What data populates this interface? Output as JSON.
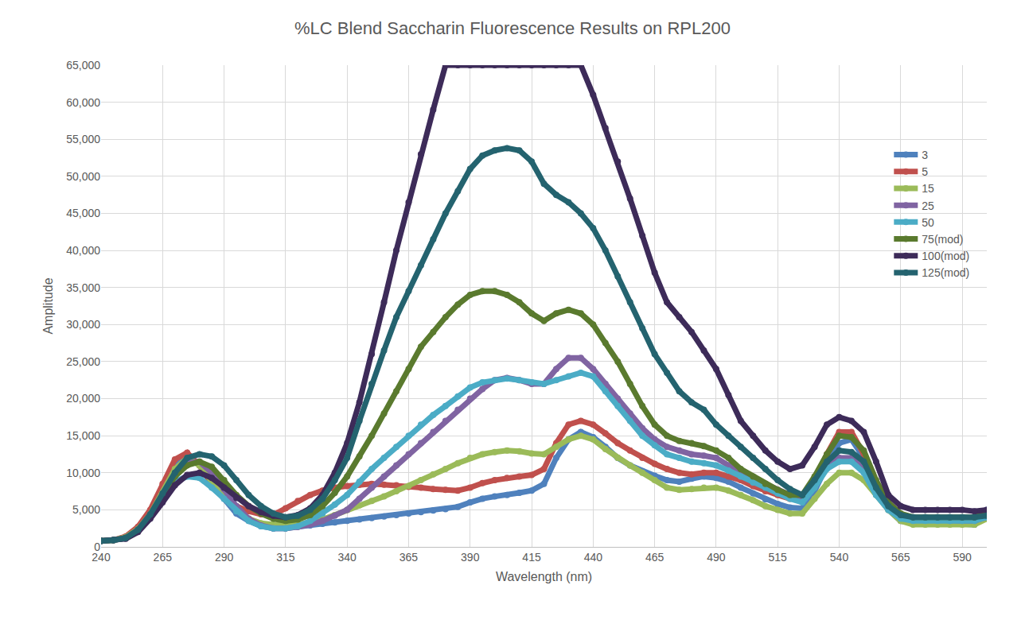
{
  "chart_data": {
    "type": "line",
    "title": "%LC Blend Saccharin Fluorescence Results on RPL200",
    "x_label": "Wavelength (nm)",
    "y_label": "Amplitude",
    "marker": "circle",
    "grid": true,
    "legend": "right",
    "xlim": [
      240,
      600
    ],
    "xticks": [
      240,
      265,
      290,
      315,
      340,
      365,
      390,
      415,
      440,
      465,
      490,
      515,
      540,
      565,
      590
    ],
    "ylim": [
      0,
      65000
    ],
    "yticks": [
      0,
      {
        "value": 5000,
        "label": "5,000"
      },
      {
        "value": 10000,
        "label": "10,000"
      },
      {
        "value": 15000,
        "label": "15,000"
      },
      {
        "value": 20000,
        "label": "20,000"
      },
      {
        "value": 25000,
        "label": "25,000"
      },
      {
        "value": 30000,
        "label": "30,000"
      },
      {
        "value": 35000,
        "label": "35,000"
      },
      {
        "value": 40000,
        "label": "40,000"
      },
      {
        "value": 45000,
        "label": "45,000"
      },
      {
        "value": 50000,
        "label": "50,000"
      },
      {
        "value": 55000,
        "label": "55,000"
      },
      {
        "value": 60000,
        "label": "60,000"
      },
      {
        "value": 65000,
        "label": "65,000"
      }
    ],
    "x": [
      240,
      245,
      250,
      255,
      260,
      265,
      270,
      275,
      280,
      285,
      290,
      295,
      300,
      305,
      310,
      315,
      320,
      325,
      330,
      335,
      340,
      345,
      350,
      355,
      360,
      365,
      370,
      375,
      380,
      385,
      390,
      395,
      400,
      405,
      410,
      415,
      420,
      425,
      430,
      435,
      440,
      445,
      450,
      455,
      460,
      465,
      470,
      475,
      480,
      485,
      490,
      495,
      500,
      505,
      510,
      515,
      520,
      525,
      530,
      535,
      540,
      545,
      550,
      555,
      560,
      565,
      570,
      575,
      580,
      585,
      590,
      595,
      600
    ],
    "series": [
      {
        "name": "3",
        "color": "#4F81BD",
        "values": [
          800,
          900,
          1300,
          2500,
          4500,
          7500,
          11000,
          12500,
          11000,
          8500,
          6500,
          4500,
          3500,
          2800,
          2500,
          2500,
          2700,
          2900,
          3100,
          3300,
          3500,
          3700,
          3900,
          4100,
          4300,
          4500,
          4700,
          4900,
          5100,
          5400,
          6000,
          6500,
          6800,
          7000,
          7300,
          7600,
          8500,
          12000,
          14500,
          15500,
          14800,
          13500,
          12000,
          11000,
          10200,
          9600,
          9000,
          8800,
          9200,
          9500,
          9300,
          8800,
          8000,
          7200,
          6400,
          5800,
          5300,
          5200,
          7500,
          11000,
          14000,
          14500,
          12000,
          8000,
          5000,
          3500,
          3200,
          3300,
          3300,
          3200,
          3100,
          3000,
          5000
        ]
      },
      {
        "name": "5",
        "color": "#C0504D",
        "values": [
          800,
          900,
          1400,
          2700,
          5000,
          8500,
          11800,
          12700,
          11000,
          8500,
          6800,
          5500,
          4800,
          4400,
          4300,
          5200,
          6200,
          7000,
          7600,
          8000,
          8200,
          8400,
          8500,
          8400,
          8300,
          8100,
          8000,
          7800,
          7700,
          7600,
          8000,
          8600,
          9000,
          9300,
          9500,
          9700,
          10500,
          14000,
          16500,
          17000,
          16500,
          15300,
          14000,
          13000,
          12000,
          11200,
          10500,
          10000,
          9800,
          10000,
          10000,
          9500,
          9000,
          8200,
          7500,
          7000,
          6500,
          6500,
          9000,
          12500,
          15500,
          15500,
          12500,
          8500,
          5500,
          3800,
          3500,
          3500,
          3500,
          3400,
          3300,
          3300,
          4500
        ]
      },
      {
        "name": "15",
        "color": "#9BBB59",
        "values": [
          800,
          900,
          1300,
          2400,
          4400,
          7300,
          10500,
          12000,
          11000,
          8800,
          6800,
          5000,
          3800,
          3200,
          3000,
          2900,
          3000,
          3300,
          3700,
          4300,
          5000,
          5600,
          6200,
          6800,
          7500,
          8200,
          9000,
          9800,
          10500,
          11300,
          12000,
          12500,
          12800,
          13000,
          12900,
          12600,
          12500,
          13500,
          14500,
          15000,
          14500,
          13200,
          12000,
          11000,
          10000,
          9000,
          8000,
          7700,
          7800,
          8000,
          8000,
          7600,
          7000,
          6300,
          5500,
          5000,
          4500,
          4500,
          6500,
          8500,
          10000,
          10000,
          9000,
          7000,
          5000,
          3500,
          3000,
          3000,
          3000,
          3000,
          3000,
          3000,
          3800
        ]
      },
      {
        "name": "25",
        "color": "#8064A2",
        "values": [
          800,
          900,
          1200,
          2300,
          4200,
          6800,
          9500,
          11300,
          11500,
          10000,
          7800,
          5500,
          3800,
          2900,
          2500,
          2500,
          2700,
          3000,
          3500,
          4200,
          5000,
          6500,
          8000,
          9500,
          11000,
          12500,
          14000,
          15500,
          17000,
          18500,
          20000,
          21300,
          22500,
          22800,
          22500,
          22000,
          22000,
          24000,
          25500,
          25500,
          24000,
          22000,
          20000,
          18000,
          16000,
          14500,
          13500,
          13000,
          12500,
          12300,
          12000,
          11000,
          10000,
          9200,
          8500,
          7700,
          7000,
          6500,
          8500,
          11000,
          12000,
          12000,
          10500,
          7500,
          5500,
          4300,
          3800,
          3700,
          3600,
          3500,
          3500,
          3500,
          4000
        ]
      },
      {
        "name": "50",
        "color": "#4BACC6",
        "values": [
          800,
          900,
          1200,
          2300,
          4200,
          6500,
          8800,
          9500,
          9300,
          8000,
          6500,
          4800,
          3500,
          2800,
          2500,
          2500,
          2800,
          3500,
          4500,
          5700,
          7000,
          8800,
          10500,
          12000,
          13500,
          15000,
          16500,
          17800,
          19000,
          20300,
          21500,
          22200,
          22500,
          22700,
          22500,
          22200,
          22000,
          22500,
          23000,
          23500,
          23000,
          21000,
          19000,
          17000,
          15000,
          13700,
          12500,
          12000,
          11500,
          11300,
          11000,
          10300,
          9500,
          8700,
          8000,
          7200,
          6500,
          6000,
          8000,
          10500,
          11500,
          11500,
          10000,
          7000,
          5000,
          3800,
          3500,
          3500,
          3500,
          3500,
          3500,
          3500,
          4000
        ]
      },
      {
        "name": "75(mod)",
        "color": "#5A7A2E",
        "values": [
          800,
          900,
          1200,
          2300,
          4200,
          6800,
          9500,
          11000,
          11500,
          10800,
          9000,
          7000,
          5500,
          4500,
          3800,
          3500,
          3700,
          4300,
          5500,
          7300,
          9500,
          12200,
          15000,
          18000,
          21000,
          24000,
          27000,
          29000,
          31000,
          32700,
          34000,
          34500,
          34500,
          34000,
          33000,
          31500,
          30500,
          31500,
          32000,
          31500,
          30000,
          27500,
          25000,
          22000,
          19000,
          16500,
          15000,
          14300,
          14000,
          13600,
          13000,
          12000,
          10500,
          9500,
          8500,
          7700,
          7000,
          7000,
          9500,
          12500,
          15000,
          14800,
          13000,
          9000,
          6000,
          4500,
          4000,
          4000,
          4000,
          4000,
          4000,
          4000,
          4500
        ]
      },
      {
        "name": "100(mod)",
        "color": "#3D2B59",
        "values": [
          800,
          900,
          1100,
          2000,
          3800,
          6000,
          8300,
          9700,
          10000,
          9300,
          8000,
          6600,
          5500,
          4700,
          4200,
          4000,
          4300,
          5200,
          7000,
          10000,
          14000,
          19500,
          26000,
          33000,
          40000,
          46500,
          53000,
          59000,
          65000,
          65000,
          65000,
          65000,
          65000,
          65000,
          65000,
          65000,
          65000,
          65000,
          65000,
          65000,
          61000,
          56500,
          52000,
          47000,
          42000,
          37000,
          33000,
          31000,
          29000,
          26500,
          24000,
          20500,
          17000,
          15000,
          13000,
          11500,
          10500,
          11000,
          13500,
          16500,
          17500,
          17000,
          15500,
          11500,
          7000,
          5500,
          5000,
          5000,
          5000,
          5000,
          5000,
          4800,
          5000
        ]
      },
      {
        "name": "125(mod)",
        "color": "#24636F",
        "values": [
          800,
          900,
          1200,
          2300,
          4400,
          7200,
          10000,
          12000,
          12500,
          12200,
          11000,
          9000,
          7000,
          5500,
          4500,
          4000,
          4200,
          5000,
          6500,
          9000,
          12000,
          17000,
          22000,
          26500,
          31000,
          34500,
          38000,
          41500,
          45000,
          48000,
          51000,
          52800,
          53500,
          53800,
          53500,
          52000,
          49000,
          47500,
          46500,
          45000,
          43000,
          40000,
          36500,
          33000,
          29500,
          26000,
          23500,
          21000,
          19500,
          18500,
          16500,
          15000,
          13500,
          12000,
          10500,
          9000,
          7800,
          7000,
          9000,
          11500,
          13000,
          12800,
          11500,
          8000,
          5500,
          4300,
          4000,
          4000,
          4000,
          4000,
          4000,
          4000,
          4200
        ]
      }
    ]
  }
}
